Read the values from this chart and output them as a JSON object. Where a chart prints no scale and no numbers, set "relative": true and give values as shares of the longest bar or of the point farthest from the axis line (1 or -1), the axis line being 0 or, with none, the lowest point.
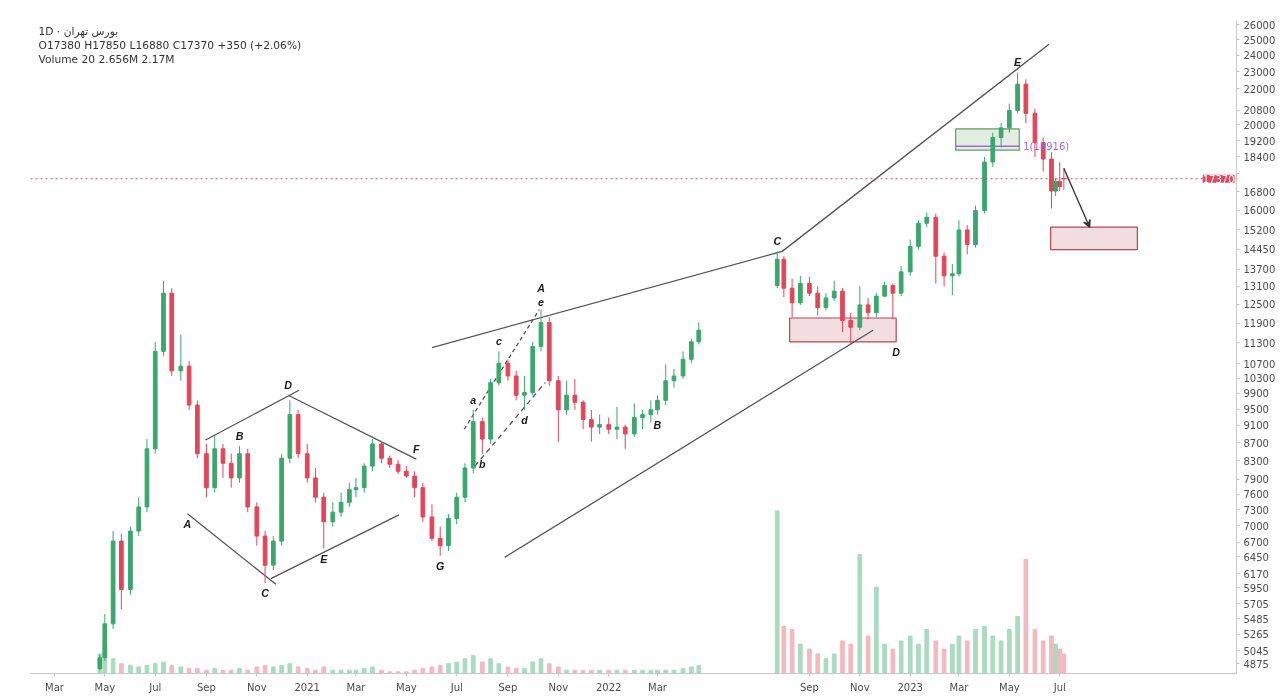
{
  "chart_data": [
    {
      "type": "candlestick",
      "title": "1D · بورس تهران",
      "log": true,
      "grid": false,
      "xlim": [
        "2020-02-01",
        "2024-01-31"
      ],
      "ylim": [
        4750,
        26300
      ],
      "xticks": [
        {
          "value": "2020-03-01",
          "label": "Mar"
        },
        {
          "value": "2020-05-01",
          "label": "May"
        },
        {
          "value": "2020-07-01",
          "label": "Jul"
        },
        {
          "value": "2020-09-01",
          "label": "Sep"
        },
        {
          "value": "2020-11-01",
          "label": "Nov"
        },
        {
          "value": "2021-01-01",
          "label": "2021"
        },
        {
          "value": "2021-03-01",
          "label": "Mar"
        },
        {
          "value": "2021-05-01",
          "label": "May"
        },
        {
          "value": "2021-07-01",
          "label": "Jul"
        },
        {
          "value": "2021-09-01",
          "label": "Sep"
        },
        {
          "value": "2021-11-01",
          "label": "Nov"
        },
        {
          "value": "2022-01-01",
          "label": "2022"
        },
        {
          "value": "2022-03-01",
          "label": "Mar"
        },
        {
          "value": "2022-09-01",
          "label": "Sep"
        },
        {
          "value": "2022-11-01",
          "label": "Nov"
        },
        {
          "value": "2023-01-01",
          "label": "2023"
        },
        {
          "value": "2023-03-01",
          "label": "Mar"
        },
        {
          "value": "2023-05-01",
          "label": "May"
        },
        {
          "value": "2023-07-01",
          "label": "Jul"
        }
      ],
      "yticks": [
        4875,
        5045,
        5265,
        5485,
        5705,
        5950,
        6170,
        6450,
        6700,
        7000,
        7300,
        7600,
        7900,
        8300,
        8700,
        9100,
        9500,
        9900,
        10300,
        10700,
        11300,
        11900,
        12500,
        13100,
        13700,
        14450,
        15200,
        16000,
        16800,
        {
          "value": 17600,
          "label": null
        },
        18400,
        19200,
        20000,
        20800,
        22000,
        23000,
        24000,
        25000,
        26000
      ],
      "x": [
        "2020-04-25",
        "2020-05-01",
        "2020-05-11",
        "2020-05-21",
        "2020-06-01",
        "2020-06-11",
        "2020-06-21",
        "2020-07-01",
        "2020-07-11",
        "2020-07-21",
        "2020-08-01",
        "2020-08-11",
        "2020-08-21",
        "2020-09-01",
        "2020-09-11",
        "2020-09-21",
        "2020-10-01",
        "2020-10-11",
        "2020-10-21",
        "2020-11-01",
        "2020-11-11",
        "2020-11-21",
        "2020-12-01",
        "2020-12-11",
        "2020-12-21",
        "2021-01-01",
        "2021-01-11",
        "2021-01-21",
        "2021-02-01",
        "2021-02-11",
        "2021-02-21",
        "2021-03-01",
        "2021-03-11",
        "2021-03-21",
        "2021-04-01",
        "2021-04-11",
        "2021-04-21",
        "2021-05-01",
        "2021-05-11",
        "2021-05-21",
        "2021-06-01",
        "2021-06-11",
        "2021-06-21",
        "2021-07-01",
        "2021-07-11",
        "2021-07-21",
        "2021-08-01",
        "2021-08-11",
        "2021-08-21",
        "2021-09-01",
        "2021-09-11",
        "2021-09-21",
        "2021-10-01",
        "2021-10-11",
        "2021-10-21",
        "2021-11-01",
        "2021-11-11",
        "2021-11-21",
        "2021-12-01",
        "2021-12-11",
        "2021-12-21",
        "2022-01-01",
        "2022-01-11",
        "2022-01-21",
        "2022-02-01",
        "2022-02-11",
        "2022-02-21",
        "2022-03-01",
        "2022-03-11",
        "2022-03-21",
        "2022-04-01",
        "2022-04-11",
        "2022-04-20",
        "2022-07-24",
        "2022-08-01",
        "2022-08-11",
        "2022-08-21",
        "2022-09-01",
        "2022-09-11",
        "2022-09-21",
        "2022-10-01",
        "2022-10-11",
        "2022-10-21",
        "2022-11-01",
        "2022-11-11",
        "2022-11-21",
        "2022-12-01",
        "2022-12-11",
        "2022-12-21",
        "2023-01-01",
        "2023-01-11",
        "2023-01-21",
        "2023-02-01",
        "2023-02-11",
        "2023-02-21",
        "2023-03-01",
        "2023-03-11",
        "2023-03-21",
        "2023-04-01",
        "2023-04-11",
        "2023-04-21",
        "2023-05-01",
        "2023-05-11",
        "2023-05-21",
        "2023-06-01",
        "2023-06-11",
        "2023-06-21",
        "2023-06-26",
        "2023-07-01",
        "2023-07-06"
      ],
      "ohlc": [
        [
          4810,
          4990,
          4790,
          4950
        ],
        [
          4950,
          5550,
          4910,
          5410
        ],
        [
          5410,
          6900,
          5340,
          6720
        ],
        [
          6720,
          6850,
          5620,
          5920
        ],
        [
          5920,
          6980,
          5840,
          6900
        ],
        [
          6900,
          7540,
          6810,
          7350
        ],
        [
          7350,
          8780,
          7250,
          8560
        ],
        [
          8560,
          11330,
          8450,
          11050
        ],
        [
          11050,
          13300,
          10910,
          12870
        ],
        [
          12870,
          13040,
          10360,
          10500
        ],
        [
          10500,
          11540,
          10230,
          10630
        ],
        [
          10630,
          10770,
          9480,
          9600
        ],
        [
          9600,
          9720,
          8350,
          8450
        ],
        [
          8450,
          8670,
          7540,
          7730
        ],
        [
          7730,
          8850,
          7630,
          8560
        ],
        [
          8560,
          8670,
          7930,
          8240
        ],
        [
          8240,
          8450,
          7730,
          7930
        ],
        [
          7930,
          8620,
          7830,
          8450
        ],
        [
          8450,
          8560,
          7250,
          7350
        ],
        [
          7350,
          7440,
          6640,
          6810
        ],
        [
          6810,
          6900,
          6020,
          6310
        ],
        [
          6310,
          6810,
          6230,
          6720
        ],
        [
          6720,
          8450,
          6640,
          8350
        ],
        [
          8350,
          9720,
          8240,
          9360
        ],
        [
          9360,
          9480,
          8350,
          8450
        ],
        [
          8450,
          8670,
          7830,
          7930
        ],
        [
          7930,
          8140,
          7440,
          7540
        ],
        [
          7540,
          7630,
          6590,
          7070
        ],
        [
          7070,
          7440,
          6980,
          7250
        ],
        [
          7250,
          7630,
          7160,
          7440
        ],
        [
          7440,
          7830,
          7350,
          7690
        ],
        [
          7690,
          7930,
          7540,
          7730
        ],
        [
          7730,
          8240,
          7630,
          8180
        ],
        [
          8180,
          8780,
          8070,
          8670
        ],
        [
          8670,
          8740,
          8240,
          8350
        ],
        [
          8350,
          8410,
          8140,
          8220
        ],
        [
          8220,
          8310,
          8010,
          8070
        ],
        [
          8070,
          8180,
          7930,
          7970
        ],
        [
          7970,
          8070,
          7540,
          7730
        ],
        [
          7730,
          7830,
          7070,
          7160
        ],
        [
          7160,
          7400,
          6720,
          6770
        ],
        [
          6770,
          6980,
          6470,
          6640
        ],
        [
          6640,
          7210,
          6550,
          7130
        ],
        [
          7130,
          7630,
          7020,
          7540
        ],
        [
          7540,
          8240,
          7440,
          8140
        ],
        [
          8140,
          9480,
          8030,
          9190
        ],
        [
          9190,
          9290,
          8450,
          8780
        ],
        [
          8780,
          10280,
          8670,
          10180
        ],
        [
          10180,
          11050,
          10100,
          10710
        ],
        [
          10710,
          10820,
          10230,
          10360
        ],
        [
          10360,
          10500,
          9720,
          9850
        ],
        [
          9850,
          10360,
          9480,
          9920
        ],
        [
          9920,
          11330,
          9850,
          11190
        ],
        [
          11190,
          12330,
          11050,
          11920
        ],
        [
          11920,
          12080,
          10100,
          10230
        ],
        [
          10230,
          10360,
          8720,
          9480
        ],
        [
          9480,
          10230,
          9360,
          9850
        ],
        [
          9850,
          10280,
          9480,
          9670
        ],
        [
          9670,
          9720,
          9010,
          9240
        ],
        [
          9240,
          9480,
          8720,
          9060
        ],
        [
          9060,
          9360,
          8900,
          9120
        ],
        [
          9120,
          9290,
          8900,
          9010
        ],
        [
          9010,
          9550,
          8780,
          9060
        ],
        [
          9060,
          9120,
          8560,
          8900
        ],
        [
          8900,
          9640,
          8830,
          9290
        ],
        [
          9290,
          9480,
          9010,
          9360
        ],
        [
          9360,
          9720,
          9170,
          9480
        ],
        [
          9480,
          9850,
          9360,
          9720
        ],
        [
          9720,
          10680,
          9600,
          10230
        ],
        [
          10230,
          10550,
          10050,
          10360
        ],
        [
          10360,
          11050,
          10280,
          10820
        ],
        [
          10820,
          11420,
          10710,
          11330
        ],
        [
          11330,
          11920,
          11250,
          11680
        ],
        [
          13130,
          14360,
          13040,
          14070
        ],
        [
          14070,
          14180,
          12740,
          13040
        ],
        [
          13040,
          13370,
          12080,
          12550
        ],
        [
          12550,
          13470,
          12480,
          13200
        ],
        [
          13200,
          13440,
          12770,
          12870
        ],
        [
          12870,
          13100,
          12140,
          12390
        ],
        [
          12390,
          12870,
          12300,
          12710
        ],
        [
          12710,
          13300,
          12610,
          12940
        ],
        [
          12940,
          13040,
          11620,
          11980
        ],
        [
          11980,
          12230,
          11250,
          11770
        ],
        [
          11770,
          13100,
          11680,
          12480
        ],
        [
          12480,
          12710,
          12020,
          12230
        ],
        [
          12230,
          12870,
          12080,
          12770
        ],
        [
          12770,
          13270,
          12740,
          13130
        ],
        [
          13130,
          13200,
          12020,
          12870
        ],
        [
          12870,
          13820,
          12770,
          13610
        ],
        [
          13610,
          14810,
          13470,
          14550
        ],
        [
          14550,
          15580,
          14430,
          15460
        ],
        [
          15460,
          15900,
          15300,
          15700
        ],
        [
          15700,
          15860,
          13200,
          14180
        ],
        [
          14180,
          14320,
          13100,
          13470
        ],
        [
          13470,
          13890,
          12800,
          13540
        ],
        [
          13540,
          15580,
          13440,
          15190
        ],
        [
          15190,
          15380,
          14250,
          14620
        ],
        [
          14620,
          16190,
          14500,
          15980
        ],
        [
          15980,
          18390,
          15860,
          18150
        ],
        [
          18150,
          19600,
          17920,
          19350
        ],
        [
          19350,
          20100,
          18860,
          19850
        ],
        [
          19850,
          21150,
          19600,
          20780
        ],
        [
          20780,
          22950,
          20620,
          22260
        ],
        [
          22260,
          22540,
          20100,
          20620
        ],
        [
          20620,
          20880,
          18390,
          19100
        ],
        [
          19100,
          19350,
          17700,
          18290
        ],
        [
          18290,
          18620,
          16070,
          16820
        ],
        [
          16820,
          17380,
          16600,
          17250
        ],
        [
          17250,
          18150,
          16820,
          17020
        ],
        [
          17380,
          17850,
          16880,
          17370
        ]
      ],
      "colors": [
        "#3aa76d",
        "#3aa76d",
        "#3aa76d",
        "#e2465a",
        "#3aa76d",
        "#3aa76d",
        "#3aa76d",
        "#3aa76d",
        "#3aa76d",
        "#e2465a",
        "#3aa76d",
        "#e2465a",
        "#e2465a",
        "#e2465a",
        "#3aa76d",
        "#e2465a",
        "#e2465a",
        "#3aa76d",
        "#e2465a",
        "#e2465a",
        "#e2465a",
        "#3aa76d",
        "#3aa76d",
        "#3aa76d",
        "#e2465a",
        "#e2465a",
        "#e2465a",
        "#e2465a",
        "#3aa76d",
        "#3aa76d",
        "#3aa76d",
        "#3aa76d",
        "#3aa76d",
        "#3aa76d",
        "#e2465a",
        "#e2465a",
        "#e2465a",
        "#e2465a",
        "#e2465a",
        "#e2465a",
        "#e2465a",
        "#e2465a",
        "#3aa76d",
        "#3aa76d",
        "#3aa76d",
        "#3aa76d",
        "#e2465a",
        "#3aa76d",
        "#3aa76d",
        "#e2465a",
        "#e2465a",
        "#3aa76d",
        "#3aa76d",
        "#3aa76d",
        "#e2465a",
        "#e2465a",
        "#3aa76d",
        "#e2465a",
        "#e2465a",
        "#e2465a",
        "#3aa76d",
        "#e2465a",
        "#3aa76d",
        "#e2465a",
        "#3aa76d",
        "#3aa76d",
        "#3aa76d",
        "#3aa76d",
        "#3aa76d",
        "#3aa76d",
        "#3aa76d",
        "#3aa76d",
        "#3aa76d",
        "#3aa76d",
        "#e2465a",
        "#e2465a",
        "#3aa76d",
        "#e2465a",
        "#e2465a",
        "#3aa76d",
        "#3aa76d",
        "#e2465a",
        "#e2465a",
        "#3aa76d",
        "#e2465a",
        "#3aa76d",
        "#3aa76d",
        "#e2465a",
        "#3aa76d",
        "#3aa76d",
        "#3aa76d",
        "#3aa76d",
        "#e2465a",
        "#e2465a",
        "#3aa76d",
        "#3aa76d",
        "#e2465a",
        "#3aa76d",
        "#3aa76d",
        "#3aa76d",
        "#3aa76d",
        "#3aa76d",
        "#3aa76d",
        "#e2465a",
        "#e2465a",
        "#e2465a",
        "#e2465a",
        "#3aa76d",
        "#e2465a",
        "#e2465a"
      ],
      "series": [
        {
          "type": "line",
          "x": [
            "2022-08-08",
            "2022-12-15"
          ],
          "values": [
            null,
            null
          ],
          "lower": [
            11330,
            11330
          ],
          "upper": [
            12060,
            12060
          ],
          "color": "#b5474f"
        },
        {
          "type": "line",
          "x": [
            "2023-02-25",
            "2023-05-13"
          ],
          "values": [
            null,
            null
          ],
          "lower": [
            18720,
            18720
          ],
          "upper": [
            19800,
            19800
          ],
          "color": "#5f9e5f"
        },
        {
          "type": "line",
          "x": [
            "2023-06-20",
            "2023-10-03"
          ],
          "values": [
            null,
            null
          ],
          "lower": [
            14430,
            14430
          ],
          "upper": [
            15300,
            15300
          ],
          "color": "#b5474f"
        },
        {
          "type": "line",
          "name": "1(18916)",
          "x": [
            "2023-02-25",
            "2023-05-13"
          ],
          "values": [
            18916,
            18916
          ],
          "color": "#a36ad6"
        },
        {
          "type": "line",
          "x": [
            "2020-08-09",
            "2020-11-24"
          ],
          "values": [
            7220,
            6000
          ],
          "color": "#555555"
        },
        {
          "type": "line",
          "x": [
            "2020-08-31",
            "2020-12-22"
          ],
          "values": [
            8760,
            9980
          ],
          "color": "#555555"
        },
        {
          "type": "line",
          "x": [
            "2020-12-09",
            "2021-05-13"
          ],
          "values": [
            9850,
            8330
          ],
          "color": "#555555"
        },
        {
          "type": "line",
          "x": [
            "2020-11-18",
            "2021-04-22"
          ],
          "values": [
            6090,
            7200
          ],
          "color": "#555555"
        },
        {
          "type": "line",
          "x": [
            "2021-06-01",
            "2022-07-30",
            "2023-06-18"
          ],
          "values": [
            11160,
            14360,
            24710
          ],
          "color": "#555555"
        },
        {
          "type": "line",
          "x": [
            "2021-08-28",
            "2022-11-17"
          ],
          "values": [
            6440,
            11680
          ],
          "color": "#555555"
        },
        {
          "type": "line",
          "x": [
            "2021-07-10",
            "2021-10-09"
          ],
          "values": [
            9010,
            12330
          ],
          "color": "#555555",
          "line_style": "dashed"
        },
        {
          "type": "line",
          "x": [
            "2021-07-23",
            "2021-10-16"
          ],
          "values": [
            8180,
            10180
          ],
          "color": "#555555",
          "line_style": "dashed"
        }
      ],
      "ref_lines": [
        {
          "axis": "y",
          "value": 17370,
          "label": "17370",
          "color": "#e2465a",
          "line_style": "dotted"
        }
      ],
      "annotations": [
        "O17380 H17850 L16880 C17370 +350 (+2.06%)",
        "Volume 20 2.656M 2.17M",
        {
          "text": "A",
          "x": "2020-08-09",
          "y": 7220
        },
        {
          "text": "B",
          "x": "2020-10-11",
          "y": 8620
        },
        {
          "text": "C",
          "x": "2020-11-11",
          "y": 6020
        },
        {
          "text": "D",
          "x": "2020-12-09",
          "y": 9850
        },
        {
          "text": "E",
          "x": "2021-01-21",
          "y": 6590
        },
        {
          "text": "F",
          "x": "2021-05-13",
          "y": 8330
        },
        {
          "text": "G",
          "x": "2021-06-11",
          "y": 6470
        },
        {
          "text": "a",
          "x": "2021-07-21",
          "y": 9480
        },
        {
          "text": "b",
          "x": "2021-08-01",
          "y": 8450
        },
        {
          "text": "c",
          "x": "2021-08-21",
          "y": 11050
        },
        {
          "text": "d",
          "x": "2021-09-21",
          "y": 9480
        },
        {
          "text": "e",
          "x": "2021-10-11",
          "y": 12330
        },
        {
          "text": "A",
          "x": "2021-10-11",
          "y": 12330
        },
        {
          "text": "B",
          "x": "2022-03-01",
          "y": 9360
        },
        {
          "text": "C",
          "x": "2022-07-24",
          "y": 14360
        },
        {
          "text": "D",
          "x": "2022-12-15",
          "y": 11330
        },
        {
          "text": "E",
          "x": "2023-05-11",
          "y": 22950
        }
      ]
    },
    {
      "type": "bar",
      "relative": true,
      "tick_labels": false,
      "xlim": [
        "2020-02-01",
        "2024-01-31"
      ],
      "x": [
        "2020-04-25",
        "2020-05-01",
        "2020-05-11",
        "2020-05-21",
        "2020-06-01",
        "2020-06-11",
        "2020-06-21",
        "2020-07-01",
        "2020-07-11",
        "2020-07-21",
        "2020-08-01",
        "2020-08-11",
        "2020-08-21",
        "2020-09-01",
        "2020-09-11",
        "2020-09-21",
        "2020-10-01",
        "2020-10-11",
        "2020-10-21",
        "2020-11-01",
        "2020-11-11",
        "2020-11-21",
        "2020-12-01",
        "2020-12-11",
        "2020-12-21",
        "2021-01-01",
        "2021-01-11",
        "2021-01-21",
        "2021-02-01",
        "2021-02-11",
        "2021-02-21",
        "2021-03-01",
        "2021-03-11",
        "2021-03-21",
        "2021-04-01",
        "2021-04-11",
        "2021-04-21",
        "2021-05-01",
        "2021-05-11",
        "2021-05-21",
        "2021-06-01",
        "2021-06-11",
        "2021-06-21",
        "2021-07-01",
        "2021-07-11",
        "2021-07-21",
        "2021-08-01",
        "2021-08-11",
        "2021-08-21",
        "2021-09-01",
        "2021-09-11",
        "2021-09-21",
        "2021-10-01",
        "2021-10-11",
        "2021-10-21",
        "2021-11-01",
        "2021-11-11",
        "2021-11-21",
        "2021-12-01",
        "2021-12-11",
        "2021-12-21",
        "2022-01-01",
        "2022-01-11",
        "2022-01-21",
        "2022-02-01",
        "2022-02-11",
        "2022-02-21",
        "2022-03-01",
        "2022-03-11",
        "2022-03-21",
        "2022-04-01",
        "2022-04-11",
        "2022-04-20",
        "2022-07-24",
        "2022-08-01",
        "2022-08-11",
        "2022-08-21",
        "2022-09-01",
        "2022-09-11",
        "2022-09-21",
        "2022-10-01",
        "2022-10-11",
        "2022-10-21",
        "2022-11-01",
        "2022-11-11",
        "2022-11-21",
        "2022-12-01",
        "2022-12-11",
        "2022-12-21",
        "2023-01-01",
        "2023-01-11",
        "2023-01-21",
        "2023-02-01",
        "2023-02-11",
        "2023-02-21",
        "2023-03-01",
        "2023-03-11",
        "2023-03-21",
        "2023-04-01",
        "2023-04-11",
        "2023-04-21",
        "2023-05-01",
        "2023-05-11",
        "2023-05-21",
        "2023-06-01",
        "2023-06-11",
        "2023-06-21",
        "2023-06-26",
        "2023-07-01",
        "2023-07-06"
      ],
      "values": [
        0.12,
        0.18,
        0.09,
        0.06,
        0.05,
        0.04,
        0.05,
        0.06,
        0.07,
        0.05,
        0.04,
        0.03,
        0.03,
        0.02,
        0.03,
        0.02,
        0.02,
        0.03,
        0.02,
        0.04,
        0.05,
        0.04,
        0.05,
        0.06,
        0.04,
        0.03,
        0.02,
        0.04,
        0.02,
        0.02,
        0.02,
        0.02,
        0.03,
        0.04,
        0.02,
        0.01,
        0.01,
        0.01,
        0.02,
        0.03,
        0.04,
        0.05,
        0.06,
        0.07,
        0.09,
        0.11,
        0.07,
        0.09,
        0.06,
        0.04,
        0.03,
        0.03,
        0.07,
        0.09,
        0.06,
        0.04,
        0.02,
        0.02,
        0.02,
        0.02,
        0.02,
        0.02,
        0.02,
        0.02,
        0.02,
        0.02,
        0.02,
        0.02,
        0.02,
        0.02,
        0.03,
        0.04,
        0.05,
        1,
        0.29,
        0.27,
        0.18,
        0.15,
        0.12,
        0.09,
        0.12,
        0.2,
        0.18,
        0.73,
        0.23,
        0.53,
        0.18,
        0.15,
        0.2,
        0.23,
        0.18,
        0.27,
        0.2,
        0.15,
        0.18,
        0.23,
        0.2,
        0.27,
        0.29,
        0.23,
        0.2,
        0.27,
        0.35,
        0.7,
        0.27,
        0.2,
        0.23,
        0.18,
        0.15,
        0.12
      ],
      "colors": [
        "#a9dbbf",
        "#a9dbbf",
        "#a9dbbf",
        "#f4b9c0",
        "#a9dbbf",
        "#a9dbbf",
        "#a9dbbf",
        "#a9dbbf",
        "#a9dbbf",
        "#f4b9c0",
        "#a9dbbf",
        "#f4b9c0",
        "#f4b9c0",
        "#f4b9c0",
        "#a9dbbf",
        "#f4b9c0",
        "#f4b9c0",
        "#a9dbbf",
        "#f4b9c0",
        "#f4b9c0",
        "#f4b9c0",
        "#a9dbbf",
        "#a9dbbf",
        "#a9dbbf",
        "#f4b9c0",
        "#f4b9c0",
        "#f4b9c0",
        "#f4b9c0",
        "#a9dbbf",
        "#a9dbbf",
        "#a9dbbf",
        "#a9dbbf",
        "#a9dbbf",
        "#a9dbbf",
        "#f4b9c0",
        "#f4b9c0",
        "#f4b9c0",
        "#f4b9c0",
        "#f4b9c0",
        "#f4b9c0",
        "#f4b9c0",
        "#f4b9c0",
        "#a9dbbf",
        "#a9dbbf",
        "#a9dbbf",
        "#a9dbbf",
        "#f4b9c0",
        "#a9dbbf",
        "#a9dbbf",
        "#f4b9c0",
        "#f4b9c0",
        "#a9dbbf",
        "#a9dbbf",
        "#a9dbbf",
        "#f4b9c0",
        "#f4b9c0",
        "#a9dbbf",
        "#f4b9c0",
        "#f4b9c0",
        "#f4b9c0",
        "#a9dbbf",
        "#f4b9c0",
        "#a9dbbf",
        "#f4b9c0",
        "#a9dbbf",
        "#a9dbbf",
        "#a9dbbf",
        "#a9dbbf",
        "#a9dbbf",
        "#a9dbbf",
        "#a9dbbf",
        "#a9dbbf",
        "#a9dbbf",
        "#a9dbbf",
        "#f4b9c0",
        "#f4b9c0",
        "#a9dbbf",
        "#f4b9c0",
        "#f4b9c0",
        "#a9dbbf",
        "#a9dbbf",
        "#f4b9c0",
        "#f4b9c0",
        "#a9dbbf",
        "#f4b9c0",
        "#a9dbbf",
        "#a9dbbf",
        "#f4b9c0",
        "#a9dbbf",
        "#a9dbbf",
        "#a9dbbf",
        "#a9dbbf",
        "#f4b9c0",
        "#f4b9c0",
        "#a9dbbf",
        "#a9dbbf",
        "#f4b9c0",
        "#a9dbbf",
        "#a9dbbf",
        "#a9dbbf",
        "#a9dbbf",
        "#a9dbbf",
        "#a9dbbf",
        "#f4b9c0",
        "#f4b9c0",
        "#f4b9c0",
        "#f4b9c0",
        "#a9dbbf",
        "#f4b9c0",
        "#f4b9c0"
      ]
    }
  ]
}
